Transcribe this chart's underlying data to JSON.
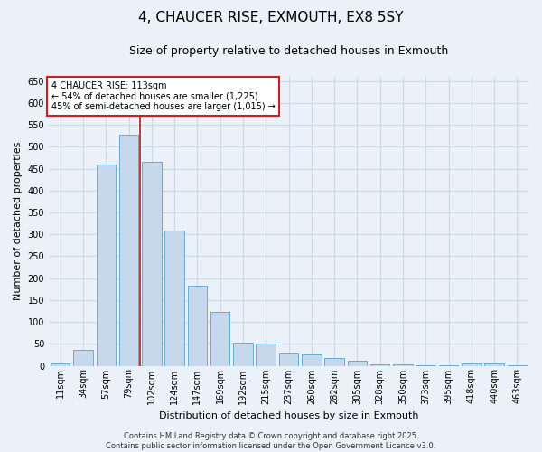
{
  "title": "4, CHAUCER RISE, EXMOUTH, EX8 5SY",
  "subtitle": "Size of property relative to detached houses in Exmouth",
  "xlabel": "Distribution of detached houses by size in Exmouth",
  "ylabel": "Number of detached properties",
  "footer_line1": "Contains HM Land Registry data © Crown copyright and database right 2025.",
  "footer_line2": "Contains public sector information licensed under the Open Government Licence v3.0.",
  "categories": [
    "11sqm",
    "34sqm",
    "57sqm",
    "79sqm",
    "102sqm",
    "124sqm",
    "147sqm",
    "169sqm",
    "192sqm",
    "215sqm",
    "237sqm",
    "260sqm",
    "282sqm",
    "305sqm",
    "328sqm",
    "350sqm",
    "373sqm",
    "395sqm",
    "418sqm",
    "440sqm",
    "463sqm"
  ],
  "values": [
    6,
    36,
    460,
    527,
    465,
    308,
    183,
    122,
    52,
    50,
    27,
    25,
    17,
    12,
    3,
    3,
    2,
    1,
    5,
    6,
    2
  ],
  "bar_color": "#c5d8ec",
  "bar_edge_color": "#6aaad4",
  "grid_color": "#c8d8e8",
  "background_color": "#eaf1f8",
  "vline_color": "#aa2020",
  "vline_x": 3.5,
  "annotation_text": "4 CHAUCER RISE: 113sqm\n← 54% of detached houses are smaller (1,225)\n45% of semi-detached houses are larger (1,015) →",
  "annotation_box_color": "#ffffff",
  "annotation_box_edge": "#cc2020",
  "ylim": [
    0,
    660
  ],
  "yticks": [
    0,
    50,
    100,
    150,
    200,
    250,
    300,
    350,
    400,
    450,
    500,
    550,
    600,
    650
  ],
  "title_fontsize": 11,
  "subtitle_fontsize": 9,
  "axis_label_fontsize": 8,
  "tick_fontsize": 7,
  "annotation_fontsize": 7,
  "footer_fontsize": 6
}
